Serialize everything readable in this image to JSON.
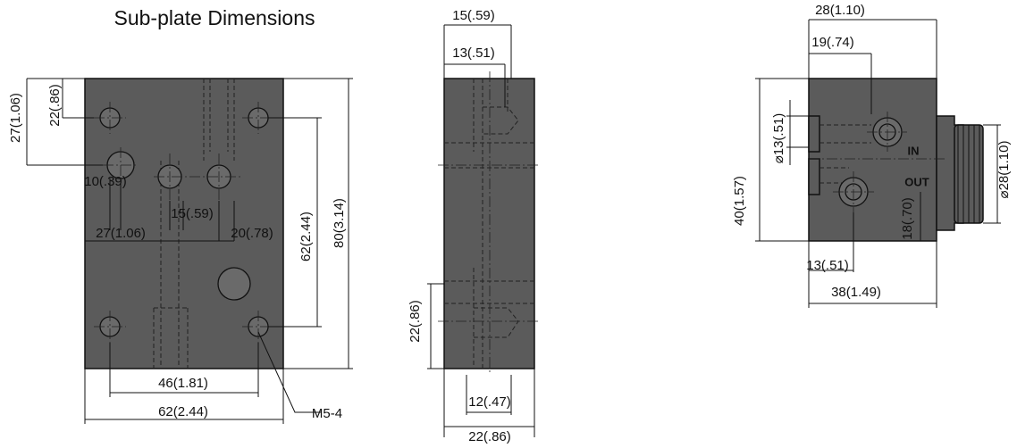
{
  "title": "Sub-plate Dimensions",
  "front_view": {
    "height_to_port": "27(1.06)",
    "height_to_hole": "22(.86)",
    "port_offset": "10(.39)",
    "port_pitch": "15(.59)",
    "port_left": "27(1.06)",
    "port_right": "20(.78)",
    "hole_pitch_v": "62(2.44)",
    "height": "80(3.14)",
    "hole_pitch_h": "46(1.81)",
    "width": "62(2.44)",
    "thread": "M5-4"
  },
  "side_view": {
    "top_width": "15(.59)",
    "top_inner": "13(.51)",
    "bottom_height": "22(.86)",
    "bottom_inner": "12(.47)",
    "bottom_width": "22(.86)"
  },
  "valve_view": {
    "width_top": "28(1.10)",
    "offset_top": "19(.74)",
    "port_dia": "⌀13(.51)",
    "height": "40(1.57)",
    "port_in": "IN",
    "port_out": "OUT",
    "knob_dia": "⌀28(1.10)",
    "out_height": "18(.70)",
    "offset_bottom": "13(.51)",
    "width_bottom": "38(1.49)"
  }
}
